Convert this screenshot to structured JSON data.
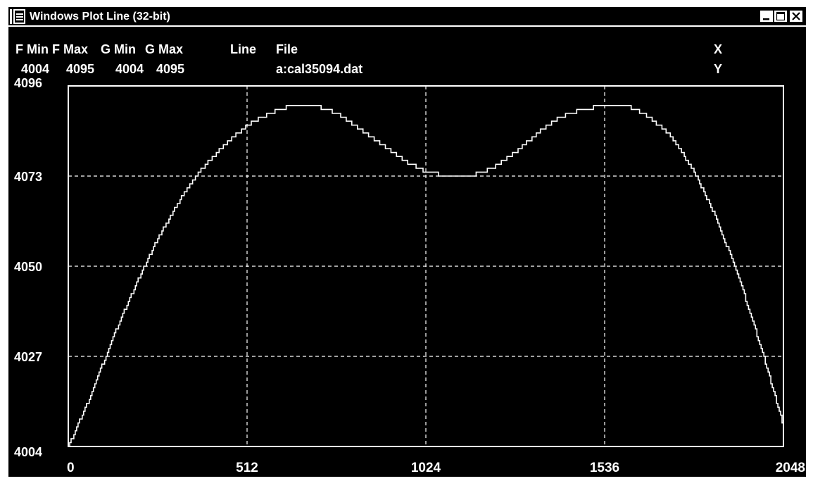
{
  "window": {
    "title": "Windows Plot Line (32-bit)",
    "buttons": [
      "minimize",
      "maximize",
      "close"
    ]
  },
  "header": {
    "col_labels": [
      "F Min",
      "F Max",
      "G Min",
      "G Max",
      "Line",
      "File"
    ],
    "col_values": [
      "4004",
      "4095",
      "4004",
      "4095",
      "",
      "a:cal35094.dat"
    ],
    "x_label": "X",
    "y_label": "Y"
  },
  "colors": {
    "background": "#000000",
    "foreground": "#ffffff"
  },
  "chart_data": {
    "type": "line",
    "title": "",
    "xlabel": "",
    "ylabel": "",
    "xlim": [
      0,
      2048
    ],
    "ylim": [
      4004,
      4096
    ],
    "x_ticks": [
      "0",
      "512",
      "1024",
      "1536",
      "2048"
    ],
    "y_ticks": [
      "4096",
      "4073",
      "4050",
      "4027",
      "4004"
    ],
    "grid": "dashed",
    "line_style": "stepped",
    "series": [
      {
        "x": [
          0,
          64,
          128,
          192,
          256,
          320,
          384,
          448,
          512,
          576,
          640,
          704,
          768,
          832,
          896,
          960,
          1024,
          1088,
          1152,
          1216,
          1280,
          1344,
          1408,
          1472,
          1536,
          1600,
          1664,
          1728,
          1792,
          1856,
          1920,
          1984,
          2048
        ],
        "values": [
          4004,
          4017,
          4032,
          4045,
          4057,
          4067,
          4075,
          4081,
          4086,
          4089,
          4091,
          4091,
          4089,
          4085,
          4081,
          4077,
          4074,
          4073,
          4073,
          4075,
          4079,
          4084,
          4088,
          4090,
          4091,
          4091,
          4088,
          4083,
          4074,
          4062,
          4047,
          4029,
          4009
        ]
      }
    ]
  }
}
